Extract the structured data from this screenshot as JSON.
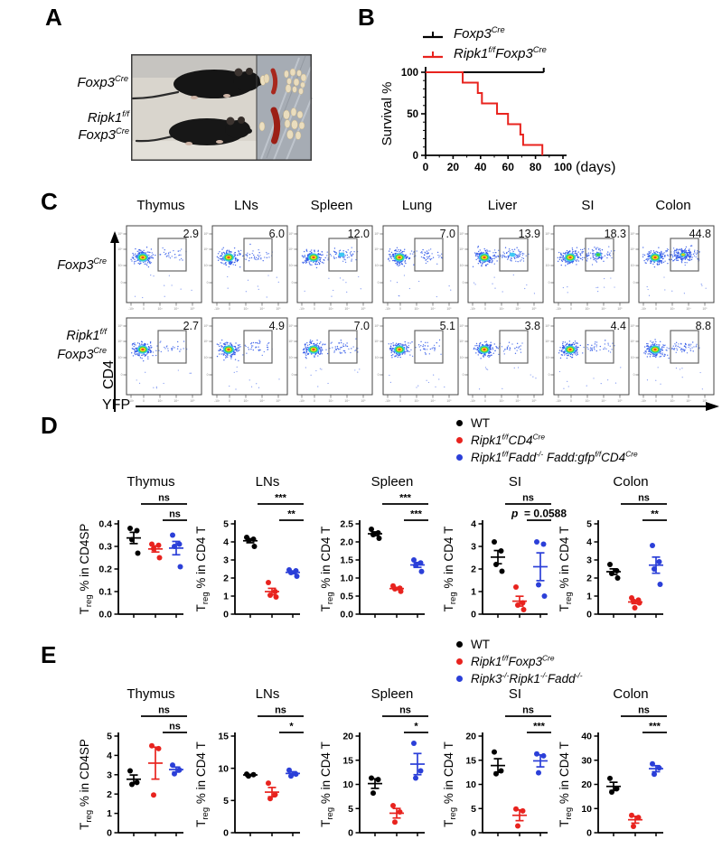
{
  "panelA": {
    "label": "A",
    "mouse1_label": "Foxp3^{Cre}",
    "mouse2_label_line1": "Ripk1^{f/f}",
    "mouse2_label_line2": "Foxp3^{Cre}"
  },
  "panelB": {
    "label": "B",
    "legend": [
      {
        "text": "Foxp3^{Cre}",
        "color": "#000000"
      },
      {
        "text": "Ripk1^{f/f}Foxp3^{Cre}",
        "color": "#e8231e"
      }
    ]
  },
  "panelC": {
    "label": "C",
    "columns": [
      "Thymus",
      "LNs",
      "Spleen",
      "Lung",
      "Liver",
      "SI",
      "Colon"
    ],
    "rows": [
      {
        "genotype_lines": [
          "Foxp3^{Cre}"
        ],
        "values": [
          "2.9",
          "6.0",
          "12.0",
          "7.0",
          "13.9",
          "18.3",
          "44.8"
        ]
      },
      {
        "genotype_lines": [
          "Ripk1^{f/f}",
          "Foxp3^{Cre}"
        ],
        "values": [
          "2.7",
          "4.9",
          "7.0",
          "5.1",
          "3.8",
          "4.4",
          "8.8"
        ]
      }
    ],
    "x_axis_label": "YFP",
    "y_axis_label": "CD4",
    "log_ticks_bottom": [
      "-10³",
      "0",
      "10³",
      "10⁴",
      "10⁵"
    ],
    "log_ticks_left": [
      "10⁵",
      "10⁴",
      "10³",
      "0"
    ]
  },
  "panelD": {
    "label": "D",
    "legend": [
      {
        "text": "WT",
        "color": "#000000",
        "italic": false
      },
      {
        "text": "Ripk1^{f/f}CD4^{Cre}",
        "color": "#e8231e",
        "italic": true
      },
      {
        "text": "Ripk1^{f/f}Fadd^{-/-} Fadd:gfp^{f/f}CD4^{Cre}",
        "color": "#2b3fd8",
        "italic": true
      }
    ]
  },
  "panelE": {
    "label": "E",
    "legend": [
      {
        "text": "WT",
        "color": "#000000",
        "italic": false
      },
      {
        "text": "Ripk1^{f/f}Foxp3^{Cre}",
        "color": "#e8231e",
        "italic": true
      },
      {
        "text": "Ripk3^{-/-}Ripk1^{-/-}Fadd^{-/-}",
        "color": "#2b3fd8",
        "italic": true
      }
    ]
  },
  "chart_data": {
    "survival": {
      "type": "line",
      "ylabel": "Survival %",
      "xlabel_suffix": "(days)",
      "xlim": [
        0,
        100
      ],
      "ylim": [
        0,
        100
      ],
      "xticks": [
        0,
        20,
        40,
        60,
        80,
        100
      ],
      "yticks": [
        0,
        50,
        100
      ],
      "series": [
        {
          "name": "Foxp3^{Cre}",
          "color": "#000000",
          "points": [
            [
              0,
              100
            ],
            [
              86,
              100
            ]
          ],
          "end_tick": true
        },
        {
          "name": "Ripk1^{f/f}Foxp3^{Cre}",
          "color": "#e8231e",
          "points": [
            [
              0,
              100
            ],
            [
              27,
              100
            ],
            [
              27,
              87.5
            ],
            [
              38,
              87.5
            ],
            [
              38,
              75
            ],
            [
              41,
              75
            ],
            [
              41,
              62.5
            ],
            [
              52,
              62.5
            ],
            [
              52,
              50
            ],
            [
              60,
              50
            ],
            [
              60,
              37.5
            ],
            [
              69,
              37.5
            ],
            [
              69,
              25
            ],
            [
              71,
              25
            ],
            [
              71,
              12.5
            ],
            [
              85,
              12.5
            ],
            [
              85,
              0
            ]
          ]
        }
      ]
    },
    "panelD_charts": [
      {
        "type": "scatter",
        "title": "Thymus",
        "ylabel_pre": "T",
        "ylabel_sub": "reg",
        "ylabel_post": " % in CD4SP",
        "ylim": [
          0,
          0.4
        ],
        "yticks": [
          "0.0",
          "0.1",
          "0.2",
          "0.3",
          "0.4"
        ],
        "groups": [
          {
            "color": "#000000",
            "values": [
              0.38,
              0.37,
              0.33,
              0.27
            ]
          },
          {
            "color": "#e8231e",
            "values": [
              0.31,
              0.305,
              0.29,
              0.25
            ]
          },
          {
            "color": "#2b3fd8",
            "values": [
              0.35,
              0.31,
              0.3,
              0.21
            ]
          }
        ],
        "sig": [
          {
            "from": 0,
            "to": 2,
            "label": "ns"
          },
          {
            "from": 1,
            "to": 2,
            "label": "ns"
          }
        ]
      },
      {
        "type": "scatter",
        "title": "LNs",
        "ylabel_pre": "T",
        "ylabel_sub": "reg",
        "ylabel_post": " % in CD4 T",
        "ylim": [
          0,
          5
        ],
        "yticks": [
          "0",
          "1",
          "2",
          "3",
          "4",
          "5"
        ],
        "groups": [
          {
            "color": "#000000",
            "values": [
              4.25,
              4.15,
              4.1,
              3.75
            ]
          },
          {
            "color": "#e8231e",
            "values": [
              1.75,
              1.25,
              1.05,
              0.95
            ]
          },
          {
            "color": "#2b3fd8",
            "values": [
              2.45,
              2.4,
              2.3,
              2.1
            ]
          }
        ],
        "sig": [
          {
            "from": 0,
            "to": 2,
            "label": "***"
          },
          {
            "from": 1,
            "to": 2,
            "label": "**"
          }
        ]
      },
      {
        "type": "scatter",
        "title": "Spleen",
        "ylabel_pre": "T",
        "ylabel_sub": "reg",
        "ylabel_post": " % in CD4 T",
        "ylim": [
          0,
          2.5
        ],
        "yticks": [
          "0.0",
          "0.5",
          "1.0",
          "1.5",
          "2.0",
          "2.5"
        ],
        "groups": [
          {
            "color": "#000000",
            "values": [
              2.35,
              2.25,
              2.2,
              2.1
            ]
          },
          {
            "color": "#e8231e",
            "values": [
              0.78,
              0.72,
              0.7,
              0.63
            ]
          },
          {
            "color": "#2b3fd8",
            "values": [
              1.5,
              1.42,
              1.35,
              1.18
            ]
          }
        ],
        "sig": [
          {
            "from": 0,
            "to": 2,
            "label": "***"
          },
          {
            "from": 1,
            "to": 2,
            "label": "***"
          }
        ]
      },
      {
        "type": "scatter",
        "title": "SI",
        "ylabel_pre": "T",
        "ylabel_sub": "reg",
        "ylabel_post": " % in CD4 T",
        "ylim": [
          0,
          4
        ],
        "yticks": [
          "0",
          "1",
          "2",
          "3",
          "4"
        ],
        "groups": [
          {
            "color": "#000000",
            "values": [
              3.2,
              2.8,
              2.2,
              1.9
            ]
          },
          {
            "color": "#e8231e",
            "values": [
              1.2,
              0.5,
              0.4,
              0.2
            ]
          },
          {
            "color": "#2b3fd8",
            "values": [
              3.2,
              3.1,
              1.3,
              0.8
            ]
          }
        ],
        "sig": [
          {
            "from": 0,
            "to": 2,
            "label": "ns"
          },
          {
            "from": 1,
            "to": 2,
            "label": "p = 0.0588"
          }
        ]
      },
      {
        "type": "scatter",
        "title": "Colon",
        "ylabel_pre": "T",
        "ylabel_sub": "reg",
        "ylabel_post": " % in CD4 T",
        "ylim": [
          0,
          5
        ],
        "yticks": [
          "0",
          "1",
          "2",
          "3",
          "4",
          "5"
        ],
        "groups": [
          {
            "color": "#000000",
            "values": [
              2.75,
              2.4,
              2.25,
              2.0
            ]
          },
          {
            "color": "#e8231e",
            "values": [
              0.9,
              0.78,
              0.72,
              0.62,
              0.35
            ]
          },
          {
            "color": "#2b3fd8",
            "values": [
              3.8,
              2.9,
              2.5,
              1.65
            ]
          }
        ],
        "sig": [
          {
            "from": 0,
            "to": 2,
            "label": "ns"
          },
          {
            "from": 1,
            "to": 2,
            "label": "**"
          }
        ]
      }
    ],
    "panelE_charts": [
      {
        "type": "scatter",
        "title": "Thymus",
        "ylabel_pre": "T",
        "ylabel_sub": "reg",
        "ylabel_post": " % in CD4SP",
        "ylim": [
          0,
          5
        ],
        "yticks": [
          "0",
          "1",
          "2",
          "3",
          "4",
          "5"
        ],
        "groups": [
          {
            "color": "#000000",
            "values": [
              3.2,
              2.6,
              2.5
            ]
          },
          {
            "color": "#e8231e",
            "values": [
              4.5,
              4.35,
              1.95
            ]
          },
          {
            "color": "#2b3fd8",
            "values": [
              3.5,
              3.25,
              3.05
            ]
          }
        ],
        "sig": [
          {
            "from": 0,
            "to": 2,
            "label": "ns"
          },
          {
            "from": 1,
            "to": 2,
            "label": "ns"
          }
        ]
      },
      {
        "type": "scatter",
        "title": "LNs",
        "ylabel_pre": "T",
        "ylabel_sub": "reg",
        "ylabel_post": " % in CD4 T",
        "ylim": [
          0,
          15
        ],
        "yticks": [
          "0",
          "5",
          "10",
          "15"
        ],
        "groups": [
          {
            "color": "#000000",
            "values": [
              9.1,
              9.0,
              8.8
            ]
          },
          {
            "color": "#e8231e",
            "values": [
              7.7,
              5.9,
              5.3
            ]
          },
          {
            "color": "#2b3fd8",
            "values": [
              9.7,
              9.1,
              8.8
            ]
          }
        ],
        "sig": [
          {
            "from": 0,
            "to": 2,
            "label": "ns"
          },
          {
            "from": 1,
            "to": 2,
            "label": "*"
          }
        ]
      },
      {
        "type": "scatter",
        "title": "Spleen",
        "ylabel_pre": "T",
        "ylabel_sub": "reg",
        "ylabel_post": " % in CD4 T",
        "ylim": [
          0,
          20
        ],
        "yticks": [
          "0",
          "5",
          "10",
          "15",
          "20"
        ],
        "groups": [
          {
            "color": "#000000",
            "values": [
              11.3,
              11.0,
              8.2
            ]
          },
          {
            "color": "#e8231e",
            "values": [
              5.6,
              4.3,
              2.2
            ]
          },
          {
            "color": "#2b3fd8",
            "values": [
              18.5,
              12.8,
              11.3
            ]
          }
        ],
        "sig": [
          {
            "from": 0,
            "to": 2,
            "label": "ns"
          },
          {
            "from": 1,
            "to": 2,
            "label": "*"
          }
        ]
      },
      {
        "type": "scatter",
        "title": "SI",
        "ylabel_pre": "T",
        "ylabel_sub": "reg",
        "ylabel_post": " % in CD4 T",
        "ylim": [
          0,
          20
        ],
        "yticks": [
          "0",
          "5",
          "10",
          "15",
          "20"
        ],
        "groups": [
          {
            "color": "#000000",
            "values": [
              16.7,
              12.8,
              12.2
            ]
          },
          {
            "color": "#e8231e",
            "values": [
              4.9,
              4.5,
              1.4
            ]
          },
          {
            "color": "#2b3fd8",
            "values": [
              16.3,
              15.9,
              12.4
            ]
          }
        ],
        "sig": [
          {
            "from": 0,
            "to": 2,
            "label": "ns"
          },
          {
            "from": 1,
            "to": 2,
            "label": "***"
          }
        ]
      },
      {
        "type": "scatter",
        "title": "Colon",
        "ylabel_pre": "T",
        "ylabel_sub": "reg",
        "ylabel_post": " % in CD4 T",
        "ylim": [
          0,
          40
        ],
        "yticks": [
          "0",
          "10",
          "20",
          "30",
          "40"
        ],
        "groups": [
          {
            "color": "#000000",
            "values": [
              22.5,
              18.2,
              16.8
            ]
          },
          {
            "color": "#e8231e",
            "values": [
              7.2,
              6.3,
              2.6
            ]
          },
          {
            "color": "#2b3fd8",
            "values": [
              28.5,
              26.8,
              24.2
            ]
          }
        ],
        "sig": [
          {
            "from": 0,
            "to": 2,
            "label": "ns"
          },
          {
            "from": 1,
            "to": 2,
            "label": "***"
          }
        ]
      }
    ]
  }
}
